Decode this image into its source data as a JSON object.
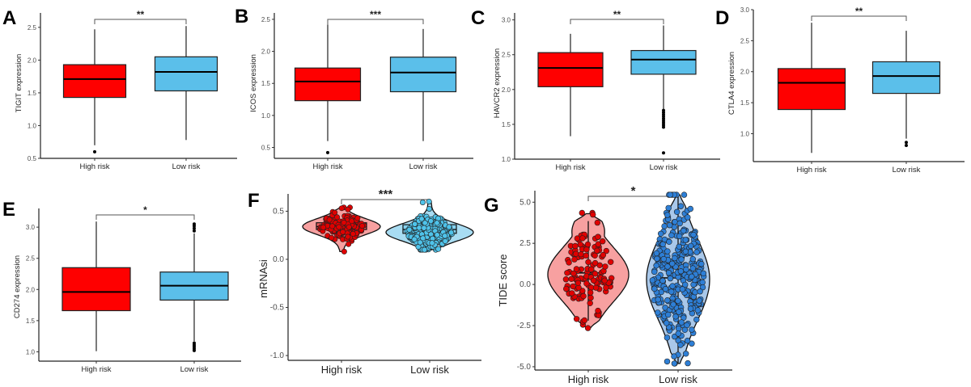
{
  "figure": {
    "colors": {
      "high_box": "#fe0000",
      "low_box": "#5bbfea",
      "high_violin": "#f7a0a0",
      "low_violin_F": "#a8dcf2",
      "low_violin_G": "#a9c8ea",
      "high_point": "#e00000",
      "low_point_F": "#4fc3ea",
      "low_point_G": "#2e7fd6"
    }
  },
  "chart_data": [
    {
      "panel": "A",
      "type": "box",
      "ylabel": "TIGIT expression",
      "xlabel": "",
      "categories": [
        "High risk",
        "Low risk"
      ],
      "yticks": [
        "0.5",
        "1.0",
        "1.5",
        "2.0",
        "2.5"
      ],
      "ylim": [
        0.5,
        2.72
      ],
      "significance": "**",
      "boxes": [
        {
          "group": "High risk",
          "min": 0.7,
          "q1": 1.43,
          "median": 1.71,
          "q3": 1.93,
          "max": 2.47,
          "outliers": [
            0.6
          ]
        },
        {
          "group": "Low risk",
          "min": 0.78,
          "q1": 1.53,
          "median": 1.82,
          "q3": 2.05,
          "max": 2.52,
          "outliers": []
        }
      ]
    },
    {
      "panel": "B",
      "type": "box",
      "ylabel": "ICOS expression",
      "xlabel": "",
      "categories": [
        "High risk",
        "Low risk"
      ],
      "yticks": [
        "0.5",
        "1.0",
        "1.5",
        "2.0",
        "2.5"
      ],
      "ylim": [
        0.33,
        2.6
      ],
      "significance": "***",
      "boxes": [
        {
          "group": "High risk",
          "min": 0.6,
          "q1": 1.23,
          "median": 1.53,
          "q3": 1.74,
          "max": 2.42,
          "outliers": [
            0.42
          ]
        },
        {
          "group": "Low risk",
          "min": 0.6,
          "q1": 1.37,
          "median": 1.67,
          "q3": 1.91,
          "max": 2.35,
          "outliers": []
        }
      ]
    },
    {
      "panel": "C",
      "type": "box",
      "ylabel": "HAVCR2 expression",
      "xlabel": "",
      "categories": [
        "High risk",
        "Low risk"
      ],
      "yticks": [
        "1.0",
        "1.5",
        "2.0",
        "2.5",
        "3.0"
      ],
      "ylim": [
        1.0,
        3.1
      ],
      "significance": "**",
      "boxes": [
        {
          "group": "High risk",
          "min": 1.33,
          "q1": 2.04,
          "median": 2.31,
          "q3": 2.53,
          "max": 2.8,
          "outliers": []
        },
        {
          "group": "Low risk",
          "min": 1.72,
          "q1": 2.22,
          "median": 2.43,
          "q3": 2.56,
          "max": 2.92,
          "outliers": [
            1.7,
            1.67,
            1.64,
            1.61,
            1.58,
            1.55,
            1.52,
            1.49,
            1.46,
            1.09
          ]
        }
      ]
    },
    {
      "panel": "D",
      "type": "box",
      "ylabel": "CTLA4 expression",
      "xlabel": "",
      "categories": [
        "High risk",
        "Low risk"
      ],
      "yticks": [
        "1.0",
        "1.5",
        "2.0",
        "2.5",
        "3.0"
      ],
      "ylim": [
        0.55,
        3.0
      ],
      "significance": "**",
      "boxes": [
        {
          "group": "High risk",
          "min": 0.69,
          "q1": 1.39,
          "median": 1.82,
          "q3": 2.05,
          "max": 2.79,
          "outliers": []
        },
        {
          "group": "Low risk",
          "min": 0.92,
          "q1": 1.65,
          "median": 1.93,
          "q3": 2.16,
          "max": 2.66,
          "outliers": [
            0.86,
            0.81
          ]
        }
      ]
    },
    {
      "panel": "E",
      "type": "box",
      "ylabel": "CD274 expression",
      "xlabel": "",
      "categories": [
        "High risk",
        "Low risk"
      ],
      "yticks": [
        "1.0",
        "1.5",
        "2.0",
        "2.5",
        "3.0"
      ],
      "ylim": [
        0.85,
        3.3
      ],
      "significance": "*",
      "boxes": [
        {
          "group": "High risk",
          "min": 1.01,
          "q1": 1.66,
          "median": 1.96,
          "q3": 2.35,
          "max": 3.09,
          "outliers": []
        },
        {
          "group": "Low risk",
          "min": 1.17,
          "q1": 1.83,
          "median": 2.06,
          "q3": 2.28,
          "max": 2.9,
          "outliers": [
            3.05,
            3.02,
            2.98,
            2.94,
            1.14,
            1.11,
            1.08,
            1.05,
            1.02
          ]
        }
      ]
    },
    {
      "panel": "F",
      "type": "violin",
      "ylabel": "mRNAsi",
      "xlabel": "",
      "categories": [
        "High risk",
        "Low risk"
      ],
      "yticks": [
        "-1.0",
        "-0.5",
        "0.0",
        "0.5"
      ],
      "ylim": [
        -1.05,
        0.68
      ],
      "significance": "***",
      "groups": [
        {
          "group": "High risk",
          "violin_min": 0.08,
          "violin_max": 0.54,
          "widest_at": 0.34,
          "q1": 0.31,
          "median": 0.34,
          "q3": 0.38,
          "point_range": [
            0.08,
            0.54
          ],
          "n_points": 160
        },
        {
          "group": "Low risk",
          "violin_min": 0.1,
          "violin_max": 0.6,
          "widest_at": 0.28,
          "q1": 0.27,
          "median": 0.31,
          "q3": 0.36,
          "point_range": [
            0.1,
            0.6
          ],
          "n_points": 300
        }
      ]
    },
    {
      "panel": "G",
      "type": "violin",
      "ylabel": "TIDE score",
      "xlabel": "",
      "categories": [
        "High risk",
        "Low risk"
      ],
      "yticks": [
        "-5.0",
        "-2.5",
        "0.0",
        "2.5",
        "5.0"
      ],
      "ylim": [
        -5.2,
        5.7
      ],
      "significance": "*",
      "groups": [
        {
          "group": "High risk",
          "violin_min": -2.65,
          "violin_max": 4.3,
          "widest_at": 0.6,
          "q1": -0.6,
          "median": 0.7,
          "q3": 1.9,
          "whisker_top": 3.85,
          "whisker_bottom": -2.2,
          "point_range": [
            -2.65,
            4.35
          ],
          "n_points": 130
        },
        {
          "group": "Low risk",
          "violin_min": -4.8,
          "violin_max": 5.45,
          "widest_at": 0.3,
          "q1": -1.0,
          "median": 0.4,
          "q3": 1.7,
          "whisker_top": 5.45,
          "whisker_bottom": -4.8,
          "point_range": [
            -4.8,
            5.45
          ],
          "n_points": 330
        }
      ]
    }
  ]
}
